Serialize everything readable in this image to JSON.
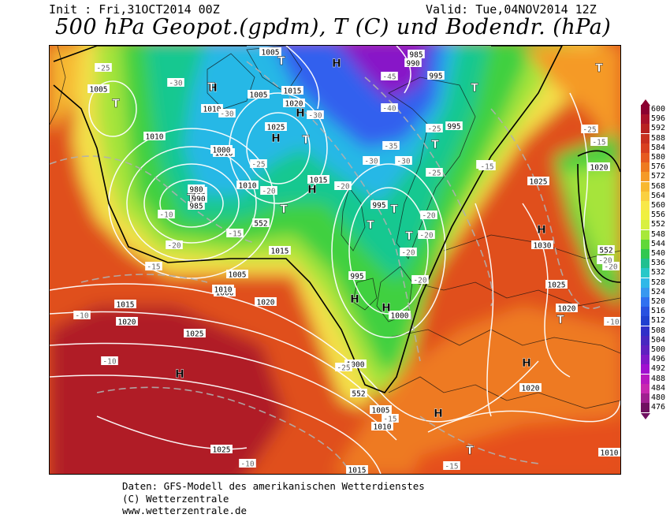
{
  "header": {
    "init": "Init : Fri,31OCT2014 00Z",
    "valid": "Valid: Tue,04NOV2014 12Z",
    "title": "500 hPa Geopot.(gpdm), T (C) und Bodendr. (hPa)"
  },
  "legend": {
    "values": [
      "600",
      "596",
      "592",
      "588",
      "584",
      "580",
      "576",
      "572",
      "568",
      "564",
      "560",
      "556",
      "552",
      "548",
      "544",
      "540",
      "536",
      "532",
      "528",
      "524",
      "520",
      "516",
      "512",
      "508",
      "504",
      "500",
      "496",
      "492",
      "488",
      "484",
      "480",
      "476"
    ],
    "colors": [
      "#8b0030",
      "#a8102a",
      "#b82020",
      "#c83020",
      "#d84020",
      "#e65a20",
      "#ee7a20",
      "#f59a28",
      "#f8b830",
      "#fad040",
      "#f8e848",
      "#f0f040",
      "#d8f040",
      "#a8e838",
      "#60d838",
      "#30c850",
      "#20c090",
      "#28c8c8",
      "#30b8e8",
      "#3898f0",
      "#3070f0",
      "#2850e0",
      "#2040d0",
      "#3030c8",
      "#4828c0",
      "#6020c0",
      "#8018c8",
      "#a010d0",
      "#b818c0",
      "#c828b0",
      "#a02090",
      "#701060"
    ]
  },
  "pressure_labels": [
    "1005",
    "990",
    "985",
    "995",
    "1005",
    "1015",
    "1020",
    "1010",
    "1005",
    "1010",
    "1025",
    "1000",
    "995",
    "990",
    "985",
    "980",
    "1010",
    "1010",
    "1015",
    "995",
    "995",
    "1030",
    "1020",
    "1025",
    "1000",
    "1005",
    "1010",
    "1015",
    "1020",
    "1025",
    "1020",
    "1000",
    "1015",
    "1000",
    "995",
    "1025",
    "1020",
    "1020",
    "1005",
    "1010",
    "1015",
    "1025",
    "1010"
  ],
  "temperature_labels": [
    "-25",
    "-30",
    "-30",
    "-45",
    "-40",
    "-30",
    "-35",
    "-25",
    "-25",
    "-20",
    "-30",
    "-25",
    "-30",
    "-20",
    "-20",
    "-20",
    "-20",
    "-25",
    "-20",
    "-15",
    "-15",
    "-10",
    "-10",
    "-20",
    "-10",
    "-15",
    "-20",
    "-15",
    "-10",
    "-10",
    "-15",
    "-15",
    "-25",
    "-20",
    "-20"
  ],
  "geopotential_labels": [
    "552",
    "552",
    "552"
  ],
  "pressure_centers": [
    "H",
    "H",
    "H",
    "H",
    "H",
    "H",
    "H",
    "H",
    "H",
    "H",
    "H",
    "T",
    "T",
    "T",
    "T",
    "T",
    "T",
    "T",
    "T",
    "T",
    "T",
    "T",
    "T",
    "T",
    "T"
  ],
  "footer": {
    "line1": "Daten: GFS-Modell des amerikanischen Wetterdienstes",
    "line2": "(C) Wetterzentrale",
    "line3": "www.wetterzentrale.de"
  }
}
